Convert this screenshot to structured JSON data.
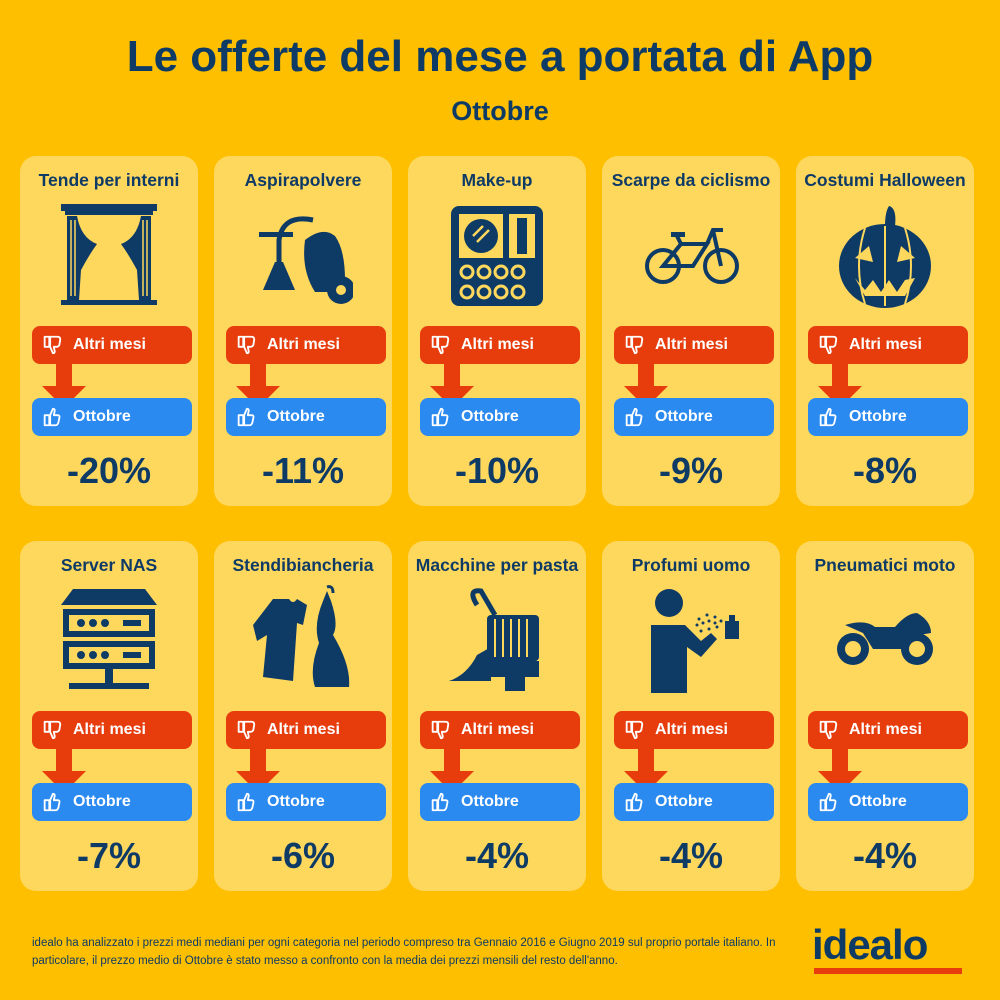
{
  "header": {
    "title": "Le offerte del mese a portata di App",
    "subtitle": "Ottobre"
  },
  "labels": {
    "other_months": "Altri mesi",
    "october": "Ottobre"
  },
  "colors": {
    "background": "#FDBF00",
    "card": "#FED75D",
    "navy": "#0E3A66",
    "red": "#E73D0D",
    "blue": "#2B8AF0"
  },
  "cards": [
    {
      "title": "Tende per interni",
      "discount": "-20%",
      "icon": "curtains-icon"
    },
    {
      "title": "Aspirapolvere",
      "discount": "-11%",
      "icon": "vacuum-cleaner-icon"
    },
    {
      "title": "Make-up",
      "discount": "-10%",
      "icon": "makeup-palette-icon"
    },
    {
      "title": "Scarpe da ciclismo",
      "discount": "-9%",
      "icon": "bicycle-icon"
    },
    {
      "title": "Costumi Halloween",
      "discount": "-8%",
      "icon": "pumpkin-icon"
    },
    {
      "title": "Server NAS",
      "discount": "-7%",
      "icon": "server-icon"
    },
    {
      "title": "Stendibiancheria",
      "discount": "-6%",
      "icon": "clothes-icon"
    },
    {
      "title": "Macchine per pasta",
      "discount": "-4%",
      "icon": "pasta-machine-icon"
    },
    {
      "title": "Profumi uomo",
      "discount": "-4%",
      "icon": "perfume-icon"
    },
    {
      "title": "Pneumatici moto",
      "discount": "-4%",
      "icon": "motorcycle-icon"
    }
  ],
  "footer": {
    "text": "idealo ha analizzato i prezzi medi mediani per ogni categoria nel periodo compreso tra Gennaio 2016 e Giugno 2019 sul proprio portale italiano. In particolare, il prezzo medio di Ottobre è stato messo a confronto con la media dei prezzi mensili del resto dell'anno.",
    "logo": "idealo"
  }
}
